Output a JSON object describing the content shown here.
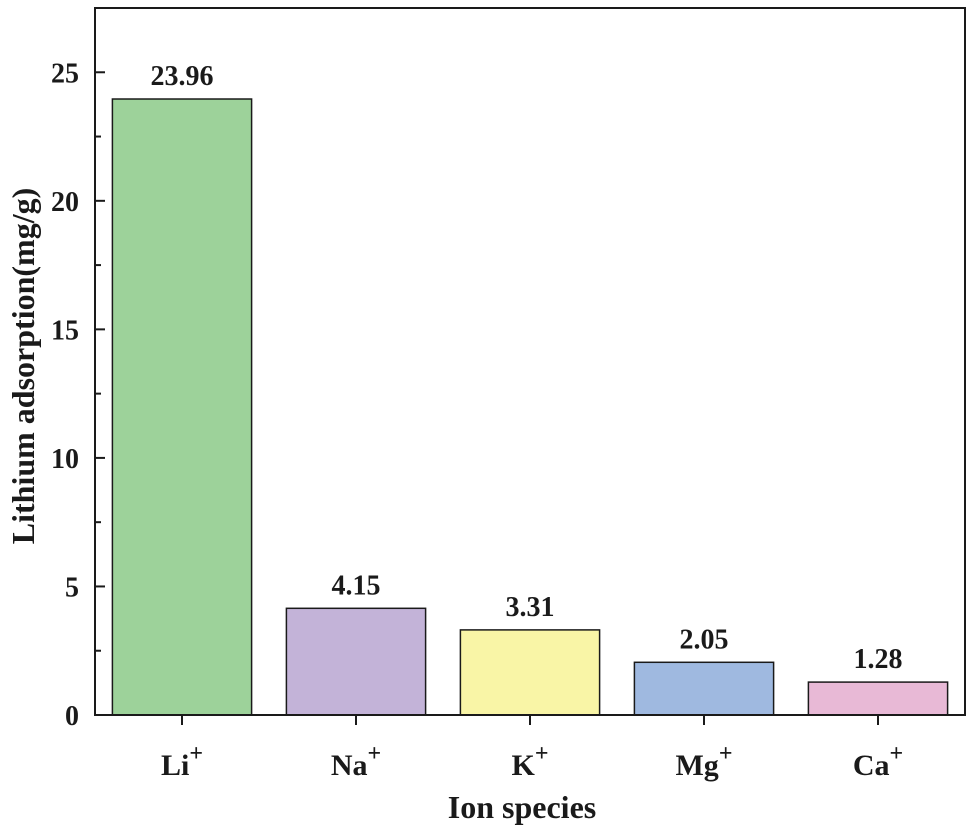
{
  "chart_data": {
    "type": "bar",
    "title": "",
    "xlabel": "Ion species",
    "ylabel": "Lithium adsorption(mg/g)",
    "categories": [
      {
        "base": "Li",
        "sup": "+"
      },
      {
        "base": "Na",
        "sup": "+"
      },
      {
        "base": "K",
        "sup": "+"
      },
      {
        "base": "Mg",
        "sup": "+"
      },
      {
        "base": "Ca",
        "sup": "+"
      }
    ],
    "values": [
      23.96,
      4.15,
      3.31,
      2.05,
      1.28
    ],
    "value_labels": [
      "23.96",
      "4.15",
      "3.31",
      "2.05",
      "1.28"
    ],
    "colors": [
      "#9dd29a",
      "#c3b3d8",
      "#f9f5a6",
      "#9fb9e0",
      "#e8b9d6"
    ],
    "ylim": [
      0,
      27.5
    ],
    "yticks": [
      0,
      5,
      10,
      15,
      20,
      25
    ],
    "grid": false,
    "legend": "none"
  }
}
